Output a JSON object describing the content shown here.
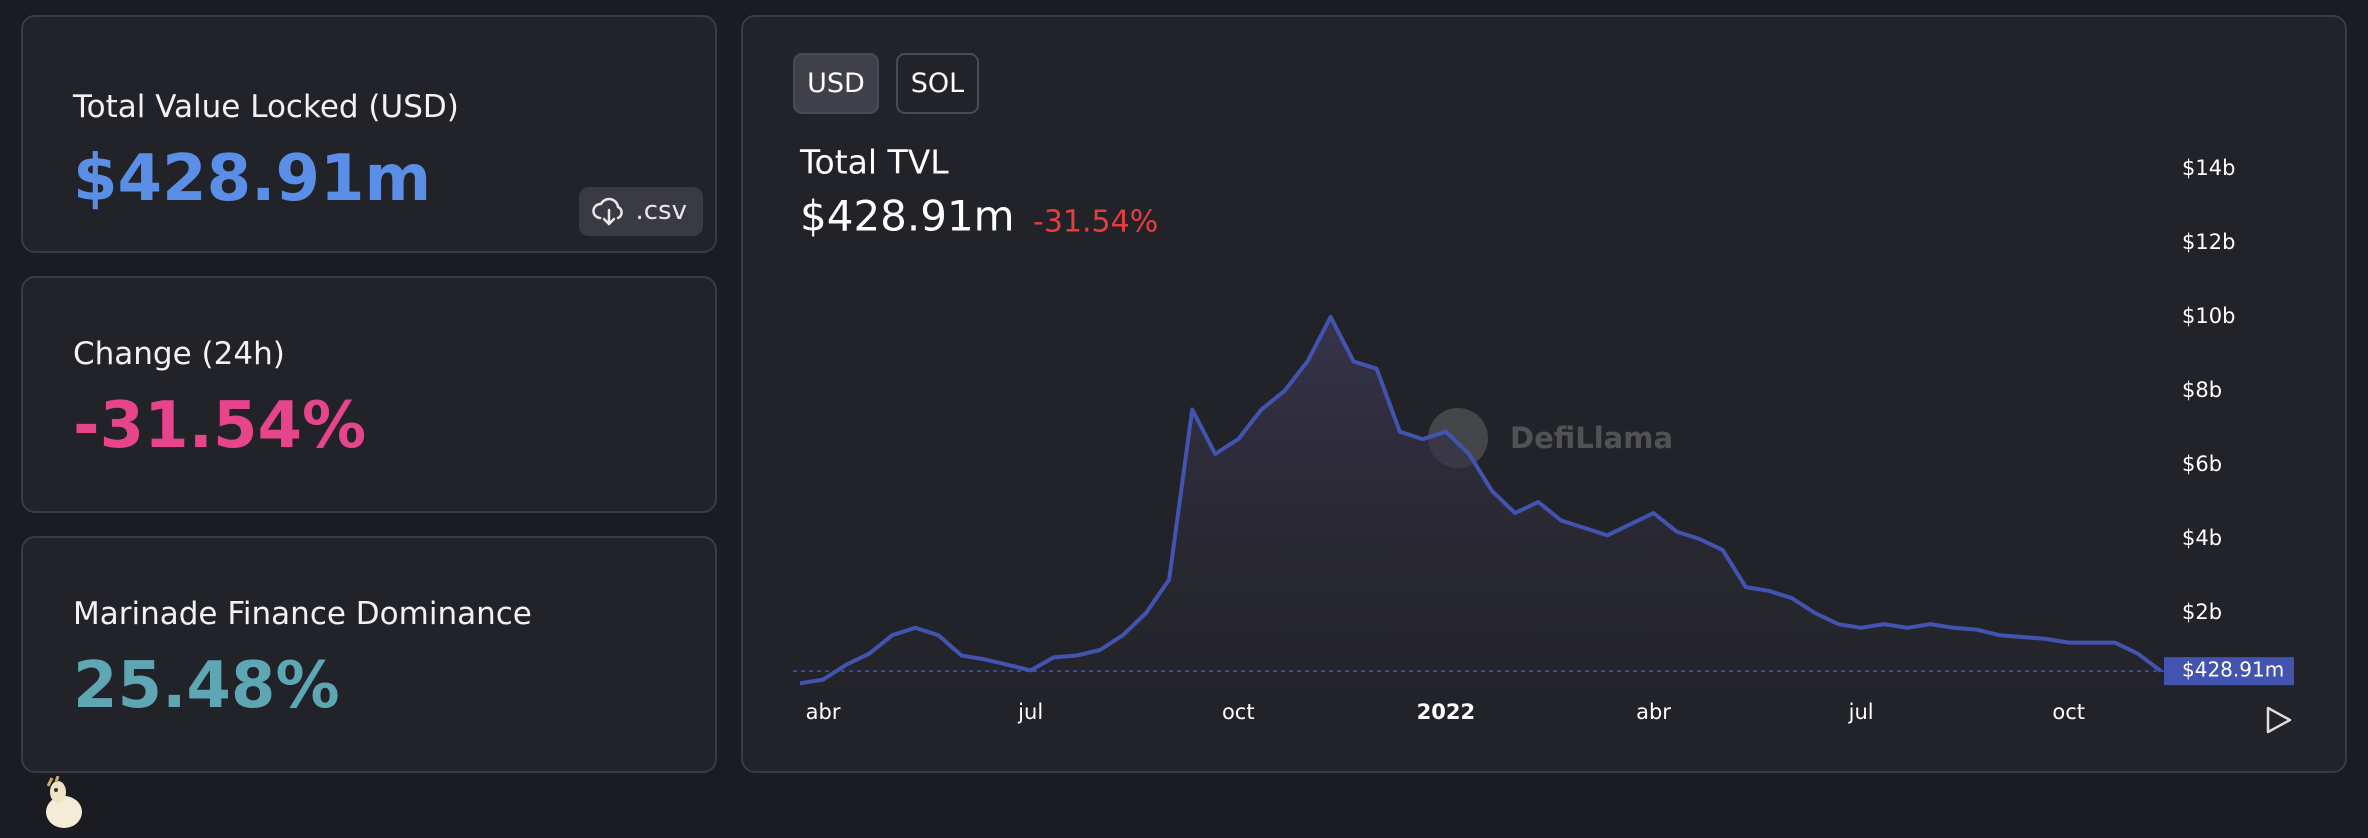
{
  "cards": [
    {
      "title": "Total Value Locked (USD)",
      "value": "$428.91m"
    },
    {
      "title": "Change (24h)",
      "value": "-31.54%"
    },
    {
      "title": "Marinade Finance Dominance",
      "value": "25.48%"
    }
  ],
  "csv_button": ".csv",
  "toggle": [
    "USD",
    "SOL"
  ],
  "chart_data": {
    "type": "line",
    "title": "Total TVL",
    "headline_value": "$428.91m",
    "headline_change": "-31.54%",
    "watermark": "DefiLlama",
    "color": "#4254b0",
    "fill": true,
    "categories": [
      null,
      "abr",
      null,
      null,
      null,
      null,
      null,
      null,
      null,
      null,
      "jul",
      null,
      null,
      null,
      null,
      null,
      null,
      null,
      null,
      "oct",
      null,
      null,
      null,
      null,
      null,
      null,
      null,
      null,
      "2022",
      null,
      null,
      null,
      null,
      null,
      null,
      null,
      null,
      "abr",
      null,
      null,
      null,
      null,
      null,
      null,
      null,
      null,
      "jul",
      null,
      null,
      null,
      null,
      null,
      null,
      null,
      null,
      "oct",
      null,
      null,
      null,
      null
    ],
    "values": [
      0.1,
      0.2,
      0.6,
      0.9,
      1.4,
      1.6,
      1.4,
      0.85,
      0.75,
      0.6,
      0.45,
      0.8,
      0.85,
      1.0,
      1.4,
      2.0,
      2.9,
      7.5,
      6.3,
      6.7,
      7.5,
      8.0,
      8.8,
      10.0,
      8.8,
      8.6,
      6.9,
      6.7,
      6.9,
      6.3,
      5.3,
      4.7,
      5.0,
      4.5,
      4.3,
      4.1,
      4.4,
      4.7,
      4.2,
      4.0,
      3.7,
      2.7,
      2.6,
      2.4,
      2.0,
      1.7,
      1.6,
      1.7,
      1.6,
      1.7,
      1.6,
      1.55,
      1.4,
      1.35,
      1.3,
      1.2,
      1.2,
      1.2,
      0.9,
      0.42891
    ],
    "value_labels": [
      null,
      null,
      null,
      null,
      null,
      null,
      null,
      null,
      null,
      null,
      null,
      null,
      null,
      null,
      null,
      null,
      null,
      null,
      null,
      null,
      null,
      null,
      null,
      null,
      null,
      null,
      null,
      null,
      null,
      null,
      null,
      null,
      null,
      null,
      null,
      null,
      null,
      null,
      null,
      null,
      null,
      null,
      null,
      null,
      null,
      null,
      null,
      null,
      null,
      null,
      null,
      null,
      null,
      null,
      null,
      null,
      null,
      null,
      null,
      "$428.91m"
    ],
    "ylim": [
      0,
      14
    ],
    "yticks": [
      {
        "value": 2,
        "label": "$2b"
      },
      {
        "value": 4,
        "label": "$4b"
      },
      {
        "value": 6,
        "label": "$6b"
      },
      {
        "value": 8,
        "label": "$8b"
      },
      {
        "value": 10,
        "label": "$10b"
      },
      {
        "value": 12,
        "label": "$12b"
      },
      {
        "value": 14,
        "label": "$14b"
      }
    ]
  }
}
